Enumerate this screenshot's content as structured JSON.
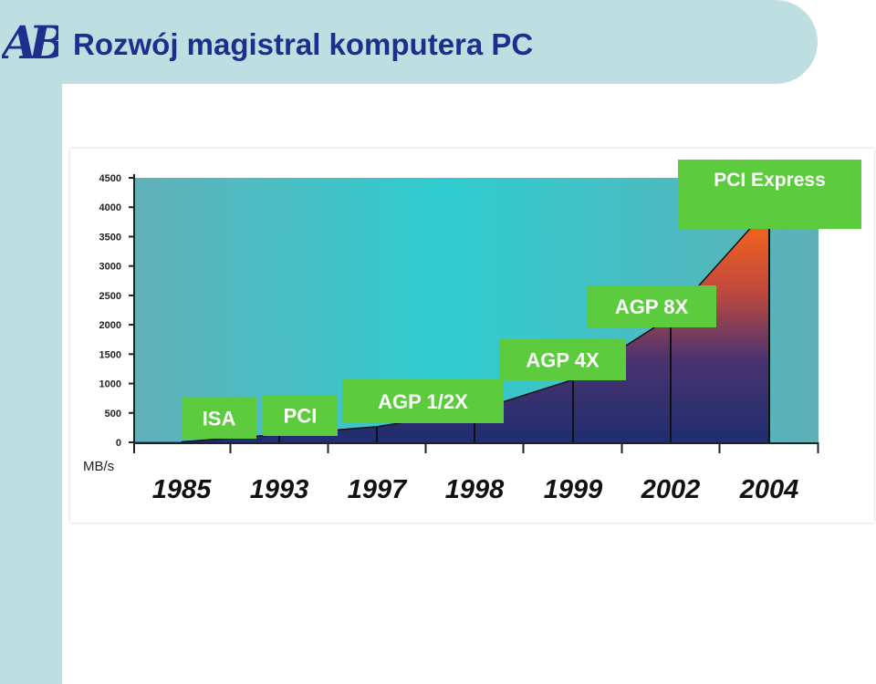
{
  "slide": {
    "title": "Rozwój magistral komputera PC",
    "logo": "AB"
  },
  "colors": {
    "band": "#bddfe2",
    "title": "#1d2f8c",
    "label_box": "#5ccc3e",
    "label_text": "#ffffff"
  },
  "chart_data": {
    "type": "area",
    "title": "",
    "xlabel": "",
    "ylabel": "MB/s",
    "ylim": [
      0,
      4500
    ],
    "y_ticks": [
      "4500",
      "4000",
      "3500",
      "3000",
      "2500",
      "2000",
      "1500",
      "1000",
      "500",
      "0"
    ],
    "categories": [
      "1985",
      "1993",
      "1997",
      "1998",
      "1999",
      "2002",
      "2004"
    ],
    "values": [
      8,
      133,
      266,
      533,
      1066,
      2133,
      4000
    ],
    "annotations": [
      "ISA",
      "PCI",
      "AGP 1/2X",
      "AGP 4X",
      "AGP 8X",
      "PCI Express"
    ],
    "grid": false,
    "legend": "none"
  }
}
